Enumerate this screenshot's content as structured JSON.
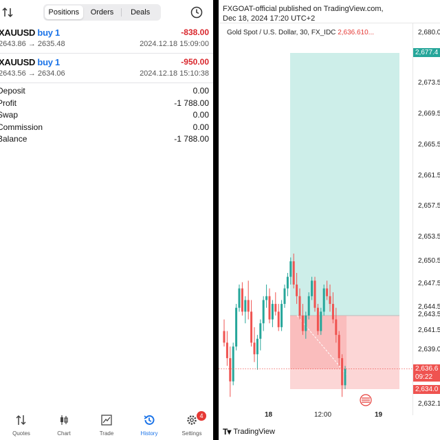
{
  "left": {
    "tabs": [
      "Positions",
      "Orders",
      "Deals"
    ],
    "active_tab": "Positions",
    "trades": [
      {
        "symbol": "XAUUSD",
        "direction": "buy 1",
        "profit": "-838.00",
        "prices": "2643.86 → 2635.48",
        "time": "2024.12.18 15:09:00"
      },
      {
        "symbol": "XAUUSD",
        "direction": "buy 1",
        "profit": "-950.00",
        "prices": "2643.56 → 2634.06",
        "time": "2024.12.18 15:10:38"
      }
    ],
    "summary": [
      {
        "label": "Deposit",
        "value": "0.00"
      },
      {
        "label": "Profit",
        "value": "-1 788.00"
      },
      {
        "label": "Swap",
        "value": "0.00"
      },
      {
        "label": "Commission",
        "value": "0.00"
      },
      {
        "label": "Balance",
        "value": "-1 788.00"
      }
    ],
    "nav": [
      {
        "label": "Quotes",
        "icon": "quotes-icon"
      },
      {
        "label": "Chart",
        "icon": "chart-icon"
      },
      {
        "label": "Trade",
        "icon": "trade-icon"
      },
      {
        "label": "History",
        "icon": "history-icon"
      },
      {
        "label": "Settings",
        "icon": "settings-icon"
      }
    ],
    "active_nav": "History",
    "settings_badge": "4",
    "colors": {
      "accent": "#1a73e8",
      "loss": "#d9262c"
    }
  },
  "right": {
    "publisher_line": "FXGOAT-official published on TradingView.com,",
    "date_line": "Dec 18, 2024 17:20 UTC+2",
    "legend_title": "Gold Spot / U.S. Dollar, 30, FX_IDC",
    "legend_price": "2,636.610...",
    "y_ticks": [
      "2,680.0",
      "2,673.5",
      "2,669.5",
      "2,665.5",
      "2,661.5",
      "2,657.5",
      "2,653.5",
      "2,650.5",
      "2,647.5",
      "2,644.5",
      "2,643.5",
      "2,641.5",
      "2,639.0",
      "2,636.6",
      "09:22",
      "2,634.0",
      "2,632.1"
    ],
    "target_label": "2,677.4",
    "current_label": "2,636.6",
    "countdown_label": "09:22",
    "stop_label": "2,634.0",
    "x_ticks": [
      "18",
      "12:00",
      "19"
    ],
    "brand": "TradingView",
    "colors": {
      "target_zone": "#cdeee9",
      "stop_zone": "#fcd6d6",
      "up": "#26a69a",
      "down": "#ef5350",
      "target_box": "#26a69a",
      "price_box": "#ef5350"
    }
  },
  "chart_data": {
    "type": "candlestick",
    "title": "Gold Spot / U.S. Dollar, 30, FX_IDC",
    "interval": "30",
    "ylim": [
      2632.1,
      2680.0
    ],
    "x_labels": [
      "18",
      "12:00",
      "19"
    ],
    "entry": 2643.5,
    "target": 2677.4,
    "stop": 2634.0,
    "last_price": 2636.61,
    "candles": [
      [
        2641.5,
        2643.0,
        2639.5,
        2640.0
      ],
      [
        2640.0,
        2641.5,
        2637.0,
        2638.0
      ],
      [
        2638.0,
        2639.5,
        2633.0,
        2635.0
      ],
      [
        2635.0,
        2640.0,
        2634.5,
        2639.5
      ],
      [
        2639.5,
        2645.0,
        2639.0,
        2644.5
      ],
      [
        2644.5,
        2647.5,
        2644.0,
        2647.0
      ],
      [
        2647.0,
        2647.8,
        2643.5,
        2644.0
      ],
      [
        2644.0,
        2646.0,
        2642.5,
        2645.5
      ],
      [
        2645.5,
        2648.0,
        2643.0,
        2644.0
      ],
      [
        2644.0,
        2645.5,
        2639.5,
        2640.0
      ],
      [
        2640.0,
        2642.0,
        2637.5,
        2638.5
      ],
      [
        2638.5,
        2641.0,
        2636.5,
        2640.5
      ],
      [
        2640.5,
        2643.0,
        2639.0,
        2642.5
      ],
      [
        2642.5,
        2646.0,
        2641.5,
        2645.5
      ],
      [
        2645.5,
        2647.5,
        2644.5,
        2646.0
      ],
      [
        2646.0,
        2647.0,
        2642.5,
        2643.0
      ],
      [
        2643.0,
        2645.5,
        2642.0,
        2645.0
      ],
      [
        2645.0,
        2646.5,
        2643.5,
        2644.0
      ],
      [
        2644.0,
        2645.0,
        2641.5,
        2642.0
      ],
      [
        2642.0,
        2645.5,
        2641.5,
        2645.0
      ],
      [
        2645.0,
        2647.5,
        2644.5,
        2647.0
      ],
      [
        2647.0,
        2649.0,
        2646.0,
        2648.5
      ],
      [
        2648.5,
        2651.0,
        2647.5,
        2650.5
      ],
      [
        2650.5,
        2651.5,
        2647.0,
        2647.5
      ],
      [
        2647.5,
        2649.0,
        2645.0,
        2646.0
      ],
      [
        2646.0,
        2647.0,
        2643.0,
        2643.5
      ],
      [
        2643.5,
        2645.0,
        2641.0,
        2641.5
      ],
      [
        2641.5,
        2644.0,
        2640.5,
        2643.5
      ],
      [
        2643.5,
        2646.5,
        2643.0,
        2646.0
      ],
      [
        2646.0,
        2648.5,
        2645.5,
        2648.0
      ],
      [
        2648.0,
        2648.5,
        2644.0,
        2644.5
      ],
      [
        2644.5,
        2645.0,
        2641.0,
        2641.5
      ],
      [
        2641.5,
        2644.5,
        2641.0,
        2644.0
      ],
      [
        2644.0,
        2647.5,
        2643.5,
        2647.0
      ],
      [
        2647.0,
        2648.0,
        2645.5,
        2646.0
      ],
      [
        2646.0,
        2647.5,
        2644.0,
        2645.0
      ],
      [
        2645.0,
        2646.5,
        2642.5,
        2643.0
      ],
      [
        2643.0,
        2644.5,
        2640.0,
        2641.0
      ],
      [
        2641.0,
        2641.5,
        2637.0,
        2638.0
      ],
      [
        2638.0,
        2638.5,
        2633.0,
        2634.5
      ],
      [
        2634.5,
        2637.0,
        2634.0,
        2636.6
      ]
    ]
  }
}
